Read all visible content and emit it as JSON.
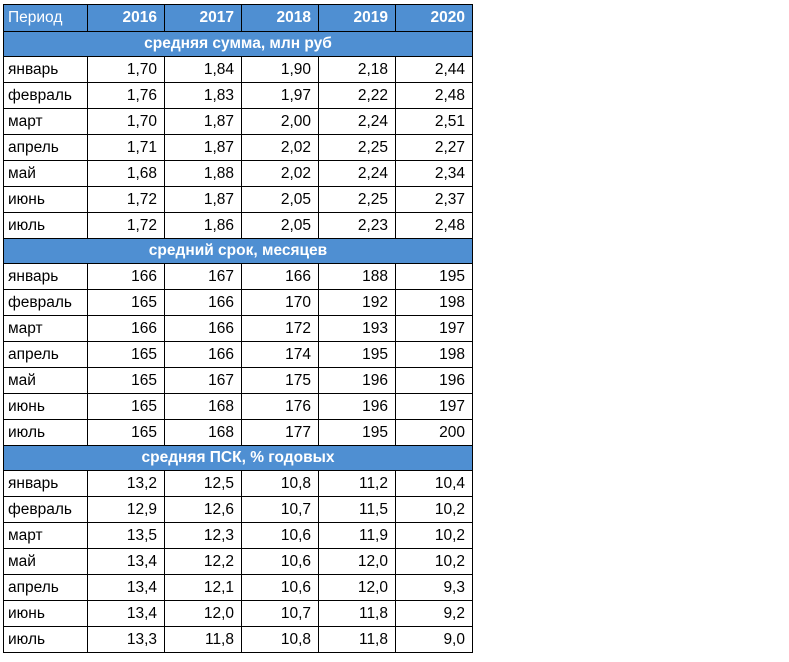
{
  "table": {
    "header": {
      "period": "Период",
      "years": [
        "2016",
        "2017",
        "2018",
        "2019",
        "2020"
      ]
    },
    "sections": [
      {
        "title": "средняя сумма, млн руб",
        "rows": [
          {
            "month": "январь",
            "values": [
              "1,70",
              "1,84",
              "1,90",
              "2,18",
              "2,44"
            ]
          },
          {
            "month": "февраль",
            "values": [
              "1,76",
              "1,83",
              "1,97",
              "2,22",
              "2,48"
            ]
          },
          {
            "month": "март",
            "values": [
              "1,70",
              "1,87",
              "2,00",
              "2,24",
              "2,51"
            ]
          },
          {
            "month": "апрель",
            "values": [
              "1,71",
              "1,87",
              "2,02",
              "2,25",
              "2,27"
            ]
          },
          {
            "month": "май",
            "values": [
              "1,68",
              "1,88",
              "2,02",
              "2,24",
              "2,34"
            ]
          },
          {
            "month": "июнь",
            "values": [
              "1,72",
              "1,87",
              "2,05",
              "2,25",
              "2,37"
            ]
          },
          {
            "month": "июль",
            "values": [
              "1,72",
              "1,86",
              "2,05",
              "2,23",
              "2,48"
            ]
          }
        ]
      },
      {
        "title": "средний срок, месяцев",
        "rows": [
          {
            "month": "январь",
            "values": [
              "166",
              "167",
              "166",
              "188",
              "195"
            ]
          },
          {
            "month": "февраль",
            "values": [
              "165",
              "166",
              "170",
              "192",
              "198"
            ]
          },
          {
            "month": "март",
            "values": [
              "166",
              "166",
              "172",
              "193",
              "197"
            ]
          },
          {
            "month": "апрель",
            "values": [
              "165",
              "166",
              "174",
              "195",
              "198"
            ]
          },
          {
            "month": "май",
            "values": [
              "165",
              "167",
              "175",
              "196",
              "196"
            ]
          },
          {
            "month": "июнь",
            "values": [
              "165",
              "168",
              "176",
              "196",
              "197"
            ]
          },
          {
            "month": "июль",
            "values": [
              "165",
              "168",
              "177",
              "195",
              "200"
            ]
          }
        ]
      },
      {
        "title": "средняя ПСК, % годовых",
        "rows": [
          {
            "month": "январь",
            "values": [
              "13,2",
              "12,5",
              "10,8",
              "11,2",
              "10,4"
            ]
          },
          {
            "month": "февраль",
            "values": [
              "12,9",
              "12,6",
              "10,7",
              "11,5",
              "10,2"
            ]
          },
          {
            "month": "март",
            "values": [
              "13,5",
              "12,3",
              "10,6",
              "11,9",
              "10,2"
            ]
          },
          {
            "month": "май",
            "values": [
              "13,4",
              "12,2",
              "10,6",
              "12,0",
              "10,2"
            ]
          },
          {
            "month": "апрель",
            "values": [
              "13,4",
              "12,1",
              "10,6",
              "12,0",
              "9,3"
            ]
          },
          {
            "month": "июнь",
            "values": [
              "13,4",
              "12,0",
              "10,7",
              "11,8",
              "9,2"
            ]
          },
          {
            "month": "июль",
            "values": [
              "13,3",
              "11,8",
              "10,8",
              "11,8",
              "9,0"
            ]
          }
        ]
      }
    ]
  },
  "colors": {
    "header_background": "#4f8fd2",
    "header_text": "#ffffff",
    "grid_lines": "#000000"
  }
}
